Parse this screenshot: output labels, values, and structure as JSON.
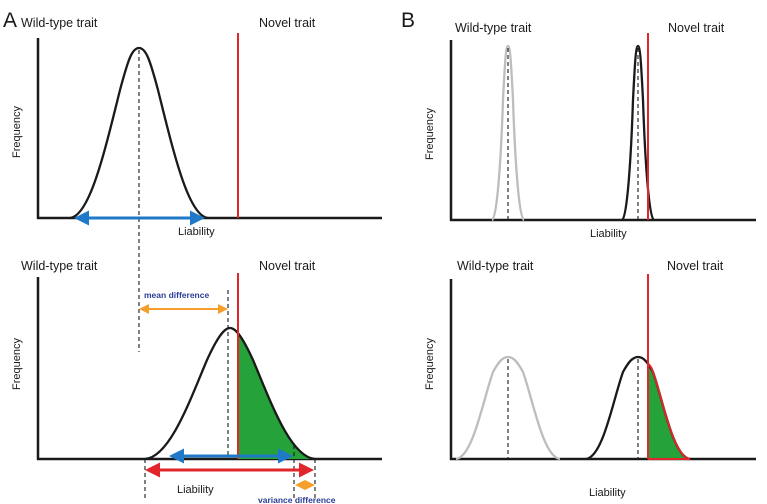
{
  "panels": {
    "a": {
      "letter": "A",
      "top": {
        "left_label": "Wild-type trait",
        "right_label": "Novel trait",
        "ylabel": "Frequency",
        "xlabel": "Liability"
      },
      "bottom": {
        "left_label": "Wild-type trait",
        "right_label": "Novel trait",
        "ylabel": "Frequency",
        "xlabel": "Liability",
        "mean_difference_label": "mean difference",
        "variance_difference_label": "variance difference"
      }
    },
    "b": {
      "letter": "B",
      "top": {
        "left_label": "Wild-type trait",
        "right_label": "Novel trait",
        "ylabel": "Frequency",
        "xlabel": "Liability"
      },
      "bottom": {
        "left_label": "Wild-type trait",
        "right_label": "Novel trait",
        "ylabel": "Frequency",
        "xlabel": "Liability"
      }
    }
  },
  "colors": {
    "curve": "#1a1a1a",
    "wildtype_curve_light": "#bdbdbd",
    "threshold": "#e0262a",
    "tail_fill": "#25a23a",
    "range_arrow_blue": "#1f78c8",
    "range_arrow_red": "#e0262a",
    "annotation_orange": "#f5a02a",
    "annotation_text": "#2b3d96"
  }
}
